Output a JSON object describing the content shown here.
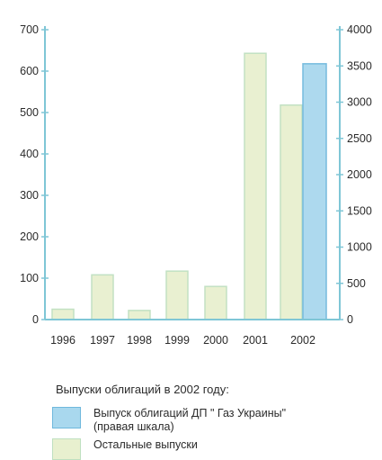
{
  "colors": {
    "axis": "#7fc6d6",
    "bar_other": "#e8f0cf",
    "bar_other_edge": "#bfe0c0",
    "bar_gaz": "#a9d8ee",
    "bar_gaz_edge": "#6fb8dd"
  },
  "chart_data": {
    "type": "bar",
    "categories": [
      "1996",
      "1997",
      "1998",
      "1999",
      "2000",
      "2001",
      "2002"
    ],
    "ylim_left": [
      0,
      700
    ],
    "ylim_right": [
      0,
      4000
    ],
    "yticks_left": [
      0,
      100,
      200,
      300,
      400,
      500,
      600,
      700
    ],
    "yticks_right": [
      0,
      500,
      1000,
      1500,
      2000,
      2500,
      3000,
      3500,
      4000
    ],
    "bars": [
      {
        "category": "1996",
        "series": "other",
        "value": 25
      },
      {
        "category": "1997",
        "series": "other",
        "value": 108
      },
      {
        "category": "1998",
        "series": "other",
        "value": 22
      },
      {
        "category": "1999",
        "series": "other",
        "value": 117
      },
      {
        "category": "2000",
        "series": "other",
        "value": 80
      },
      {
        "category": "2001",
        "series": "other",
        "value": 643
      },
      {
        "category": "2002",
        "series": "other",
        "value": 518
      },
      {
        "category": "2002",
        "series": "gaz",
        "value": 3530,
        "axis": "right"
      }
    ],
    "legend_caption": "Выпуски облигаций в 2002 году:",
    "legend": [
      {
        "key": "gaz",
        "label": "Выпуск облигаций ДП \" Газ Украины\"\n(правая шкала)"
      },
      {
        "key": "other",
        "label": "Остальные выпуски"
      }
    ]
  }
}
